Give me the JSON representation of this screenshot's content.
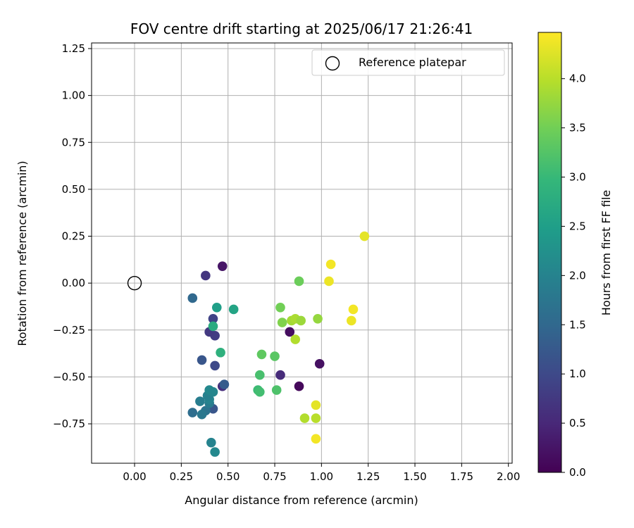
{
  "chart_data": {
    "type": "scatter",
    "title": "FOV centre drift starting at 2025/06/17 21:26:41",
    "xlabel": "Angular distance from reference (arcmin)",
    "ylabel": "Rotation from reference (arcmin)",
    "colorbar_label": "Hours from first FF file",
    "xlim": [
      -0.23,
      2.02
    ],
    "ylim": [
      -0.96,
      1.28
    ],
    "x_ticks": [
      "0.00",
      "0.25",
      "0.50",
      "0.75",
      "1.00",
      "1.25",
      "1.50",
      "1.75",
      "2.00"
    ],
    "x_tick_values": [
      0,
      0.25,
      0.5,
      0.75,
      1.0,
      1.25,
      1.5,
      1.75,
      2.0
    ],
    "y_ticks": [
      "−0.75",
      "−0.50",
      "−0.25",
      "0.00",
      "0.25",
      "0.50",
      "0.75",
      "1.00",
      "1.25"
    ],
    "y_tick_values": [
      -0.75,
      -0.5,
      -0.25,
      0,
      0.25,
      0.5,
      0.75,
      1.0,
      1.25
    ],
    "colorbar_ticks": [
      "0.0",
      "0.5",
      "1.0",
      "1.5",
      "2.0",
      "2.5",
      "3.0",
      "3.5",
      "4.0"
    ],
    "colorbar_tick_values": [
      0,
      0.5,
      1.0,
      1.5,
      2.0,
      2.5,
      3.0,
      3.5,
      4.0
    ],
    "color_range": [
      0,
      4.47
    ],
    "colormap": "viridis",
    "grid": true,
    "legend_position": "top-right",
    "legend": [
      {
        "label": "Reference platepar",
        "marker": "open-circle",
        "x": 0.0,
        "y": 0.0
      }
    ],
    "points": [
      {
        "x": 0.47,
        "y": 0.09,
        "h": 0.25
      },
      {
        "x": 0.83,
        "y": -0.26,
        "h": 0.15
      },
      {
        "x": 0.99,
        "y": -0.43,
        "h": 0.2
      },
      {
        "x": 0.88,
        "y": -0.55,
        "h": 0.1
      },
      {
        "x": 0.78,
        "y": -0.49,
        "h": 0.55
      },
      {
        "x": 0.38,
        "y": 0.04,
        "h": 0.7
      },
      {
        "x": 0.47,
        "y": -0.55,
        "h": 0.6
      },
      {
        "x": 0.43,
        "y": -0.28,
        "h": 0.8
      },
      {
        "x": 0.4,
        "y": -0.26,
        "h": 0.75
      },
      {
        "x": 0.42,
        "y": -0.19,
        "h": 0.9
      },
      {
        "x": 0.43,
        "y": -0.44,
        "h": 1.0
      },
      {
        "x": 0.36,
        "y": -0.41,
        "h": 1.2
      },
      {
        "x": 0.48,
        "y": -0.54,
        "h": 1.3
      },
      {
        "x": 0.31,
        "y": -0.08,
        "h": 1.5
      },
      {
        "x": 0.31,
        "y": -0.69,
        "h": 1.6
      },
      {
        "x": 0.42,
        "y": -0.67,
        "h": 1.2
      },
      {
        "x": 0.38,
        "y": -0.68,
        "h": 1.7
      },
      {
        "x": 0.36,
        "y": -0.7,
        "h": 1.8
      },
      {
        "x": 0.35,
        "y": -0.63,
        "h": 1.9
      },
      {
        "x": 0.4,
        "y": -0.64,
        "h": 1.85
      },
      {
        "x": 0.4,
        "y": -0.62,
        "h": 2.0
      },
      {
        "x": 0.39,
        "y": -0.6,
        "h": 1.95
      },
      {
        "x": 0.4,
        "y": -0.57,
        "h": 2.1
      },
      {
        "x": 0.42,
        "y": -0.58,
        "h": 2.05
      },
      {
        "x": 0.41,
        "y": -0.85,
        "h": 2.0
      },
      {
        "x": 0.43,
        "y": -0.9,
        "h": 2.1
      },
      {
        "x": 0.44,
        "y": -0.13,
        "h": 2.5
      },
      {
        "x": 0.53,
        "y": -0.14,
        "h": 2.6
      },
      {
        "x": 0.42,
        "y": -0.23,
        "h": 2.75
      },
      {
        "x": 0.46,
        "y": -0.37,
        "h": 2.85
      },
      {
        "x": 0.66,
        "y": -0.57,
        "h": 3.05
      },
      {
        "x": 0.67,
        "y": -0.58,
        "h": 3.1
      },
      {
        "x": 0.76,
        "y": -0.57,
        "h": 3.2
      },
      {
        "x": 0.67,
        "y": -0.49,
        "h": 3.15
      },
      {
        "x": 0.68,
        "y": -0.38,
        "h": 3.35
      },
      {
        "x": 0.75,
        "y": -0.39,
        "h": 3.3
      },
      {
        "x": 0.88,
        "y": 0.01,
        "h": 3.45
      },
      {
        "x": 0.78,
        "y": -0.13,
        "h": 3.5
      },
      {
        "x": 0.79,
        "y": -0.21,
        "h": 3.6
      },
      {
        "x": 0.84,
        "y": -0.2,
        "h": 3.85
      },
      {
        "x": 0.86,
        "y": -0.19,
        "h": 3.9
      },
      {
        "x": 0.89,
        "y": -0.2,
        "h": 3.8
      },
      {
        "x": 0.98,
        "y": -0.19,
        "h": 3.75
      },
      {
        "x": 0.86,
        "y": -0.3,
        "h": 3.95
      },
      {
        "x": 0.91,
        "y": -0.72,
        "h": 3.95
      },
      {
        "x": 0.97,
        "y": -0.72,
        "h": 4.0
      },
      {
        "x": 0.97,
        "y": -0.65,
        "h": 4.3
      },
      {
        "x": 0.97,
        "y": -0.83,
        "h": 4.4
      },
      {
        "x": 1.04,
        "y": 0.01,
        "h": 4.35
      },
      {
        "x": 1.05,
        "y": 0.1,
        "h": 4.4
      },
      {
        "x": 1.23,
        "y": 0.25,
        "h": 4.3
      },
      {
        "x": 1.17,
        "y": -0.14,
        "h": 4.4
      },
      {
        "x": 1.16,
        "y": -0.2,
        "h": 4.35
      }
    ]
  }
}
